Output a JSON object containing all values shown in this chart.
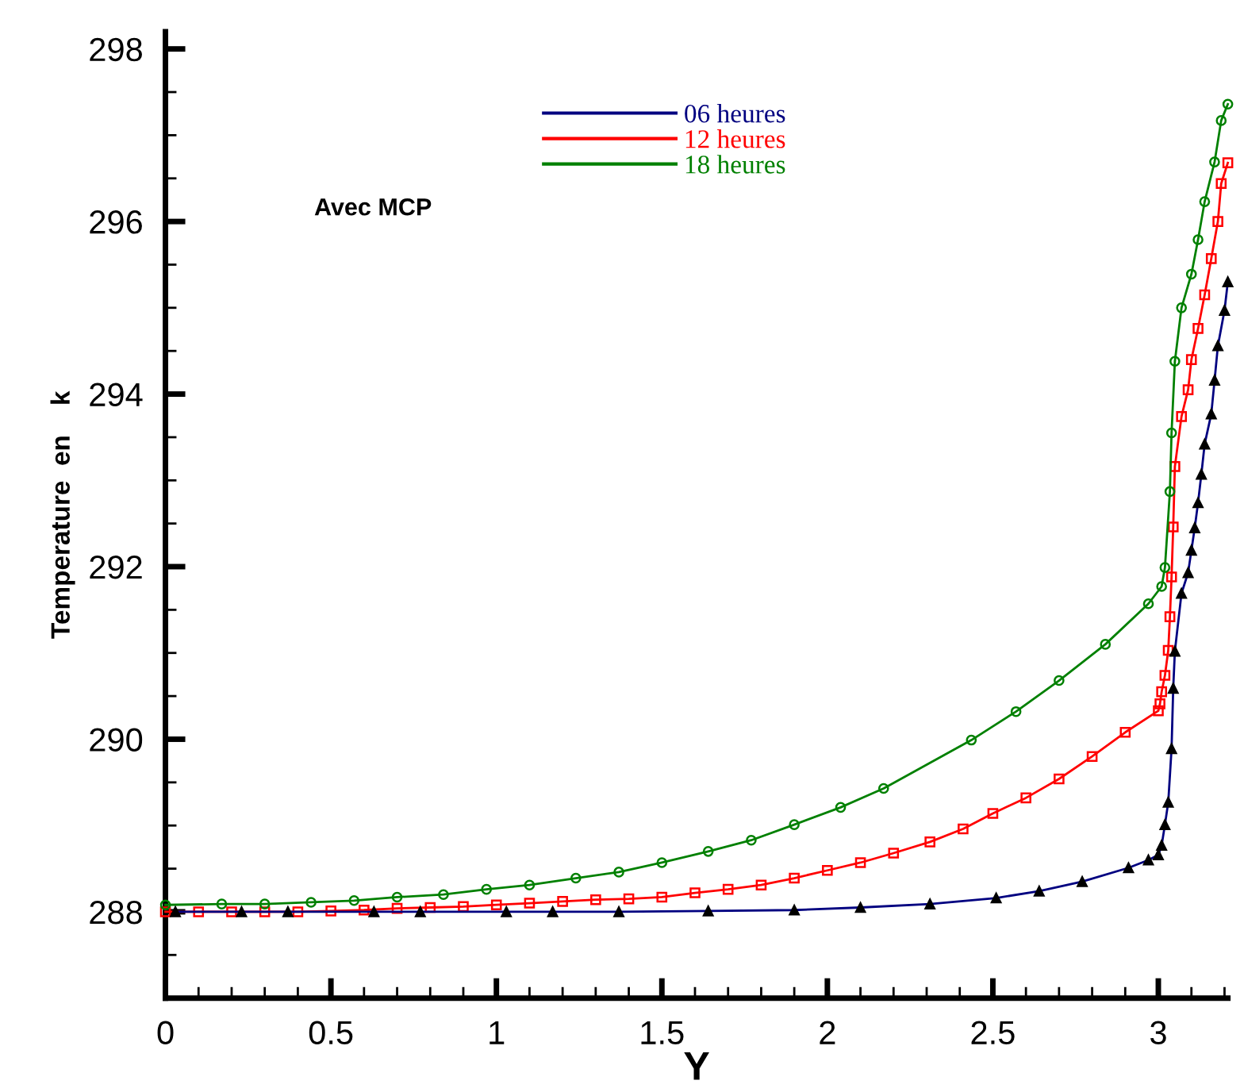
{
  "chart_data": {
    "type": "line",
    "xlabel": "Y",
    "ylabel": "Temperature  en    k",
    "annotations": [
      "Avec MCP"
    ],
    "xlim": [
      0,
      3.21
    ],
    "ylim": [
      287,
      298.2
    ],
    "xticks": [
      0,
      0.5,
      1,
      1.5,
      2,
      2.5,
      3
    ],
    "yticks": [
      288,
      290,
      292,
      294,
      296,
      298
    ],
    "grid": false,
    "legend": "top",
    "line_style": "solid",
    "series": [
      {
        "name": "06 heures",
        "color": "#000080",
        "marker": "triangle",
        "x": [
          0.03,
          0.23,
          0.37,
          0.63,
          0.77,
          1.03,
          1.17,
          1.37,
          1.64,
          1.9,
          2.1,
          2.31,
          2.51,
          2.64,
          2.77,
          2.91,
          2.97,
          3.0,
          3.01,
          3.02,
          3.03,
          3.04,
          3.045,
          3.05,
          3.07,
          3.09,
          3.1,
          3.11,
          3.12,
          3.13,
          3.14,
          3.16,
          3.17,
          3.18,
          3.2,
          3.21
        ],
        "values": [
          288.0,
          288.0,
          288.0,
          288.0,
          288.0,
          288.0,
          288.0,
          288.0,
          288.01,
          288.02,
          288.05,
          288.09,
          288.16,
          288.24,
          288.35,
          288.51,
          288.6,
          288.66,
          288.77,
          289.01,
          289.27,
          289.89,
          290.59,
          291.02,
          291.69,
          291.93,
          292.19,
          292.45,
          292.74,
          293.07,
          293.42,
          293.77,
          294.16,
          294.56,
          294.97,
          295.3
        ]
      },
      {
        "name": "12 heures",
        "color": "#ff0000",
        "marker": "square",
        "x": [
          0,
          0.1,
          0.2,
          0.3,
          0.4,
          0.5,
          0.6,
          0.7,
          0.8,
          0.9,
          1.0,
          1.1,
          1.2,
          1.3,
          1.4,
          1.5,
          1.6,
          1.7,
          1.8,
          1.9,
          2.0,
          2.1,
          2.2,
          2.31,
          2.41,
          2.5,
          2.6,
          2.7,
          2.8,
          2.9,
          3.0,
          3.005,
          3.01,
          3.02,
          3.03,
          3.035,
          3.04,
          3.045,
          3.05,
          3.07,
          3.09,
          3.1,
          3.12,
          3.14,
          3.16,
          3.18,
          3.19,
          3.21
        ],
        "values": [
          288.0,
          288.0,
          288.0,
          288.0,
          288.0,
          288.01,
          288.02,
          288.04,
          288.05,
          288.06,
          288.08,
          288.1,
          288.12,
          288.14,
          288.15,
          288.17,
          288.22,
          288.26,
          288.31,
          288.39,
          288.48,
          288.57,
          288.68,
          288.81,
          288.96,
          289.14,
          289.32,
          289.54,
          289.8,
          290.08,
          290.33,
          290.41,
          290.55,
          290.74,
          291.03,
          291.42,
          291.88,
          292.46,
          293.16,
          293.74,
          294.05,
          294.4,
          294.76,
          295.15,
          295.57,
          296.0,
          296.44,
          296.68
        ]
      },
      {
        "name": "18 heures",
        "color": "#008000",
        "marker": "circle",
        "x": [
          0,
          0.17,
          0.3,
          0.44,
          0.57,
          0.7,
          0.84,
          0.97,
          1.1,
          1.24,
          1.37,
          1.5,
          1.64,
          1.77,
          1.9,
          2.04,
          2.17,
          2.435,
          2.57,
          2.7,
          2.84,
          2.97,
          3.01,
          3.02,
          3.035,
          3.04,
          3.05,
          3.07,
          3.1,
          3.12,
          3.14,
          3.17,
          3.19,
          3.21
        ],
        "values": [
          288.08,
          288.09,
          288.09,
          288.11,
          288.13,
          288.17,
          288.2,
          288.26,
          288.31,
          288.39,
          288.46,
          288.57,
          288.7,
          288.83,
          289.01,
          289.21,
          289.43,
          289.99,
          290.32,
          290.68,
          291.1,
          291.57,
          291.77,
          291.99,
          292.87,
          293.55,
          294.38,
          295.0,
          295.39,
          295.79,
          296.23,
          296.69,
          297.17,
          297.36
        ]
      }
    ]
  }
}
